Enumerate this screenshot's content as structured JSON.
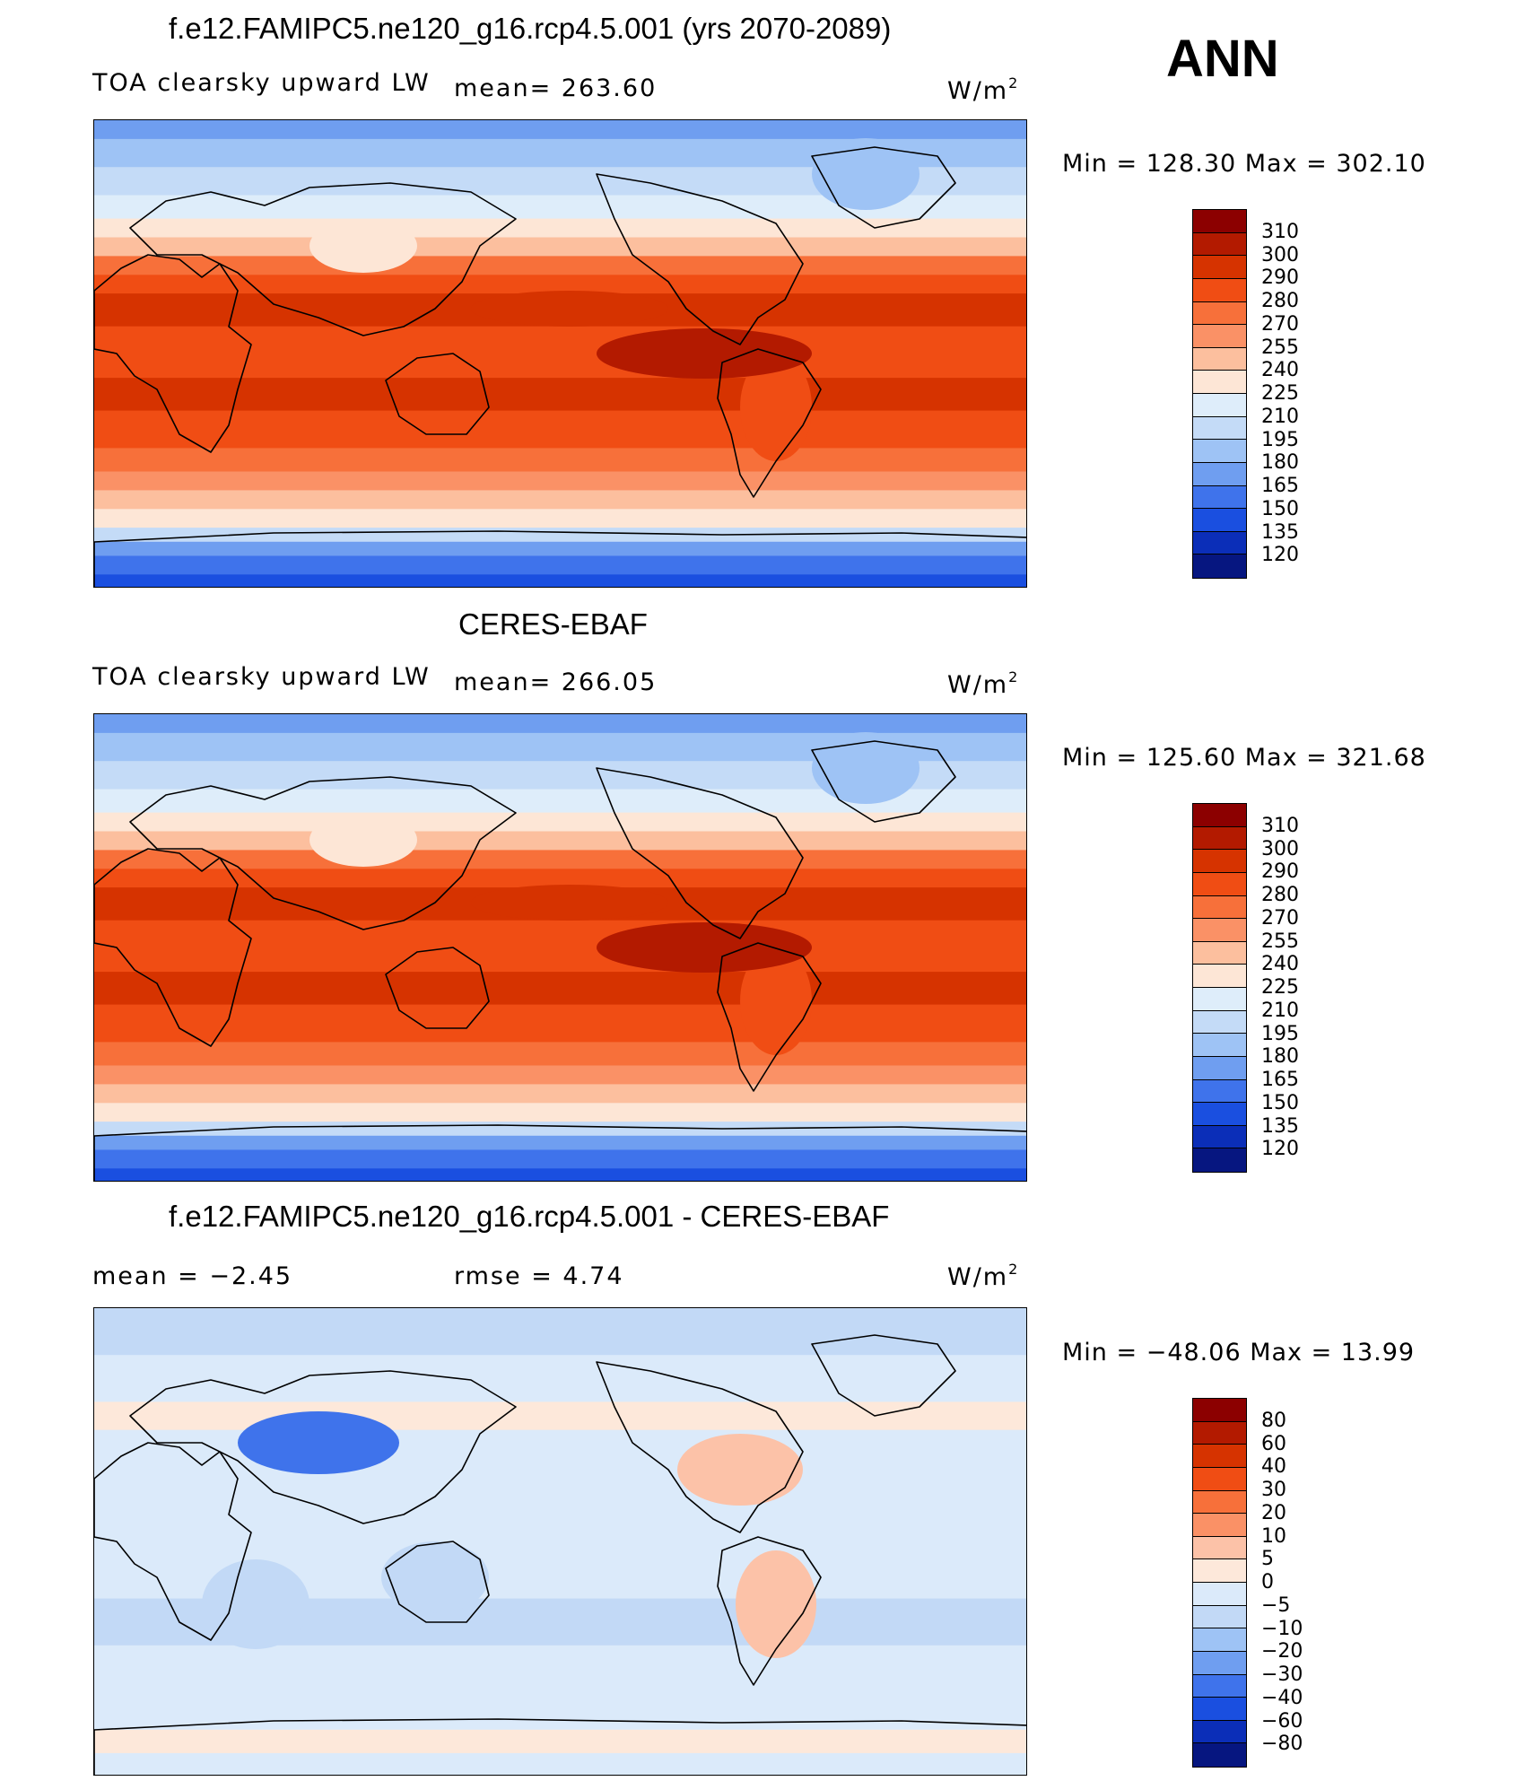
{
  "ann_label": "ANN",
  "panels": [
    {
      "id": "model",
      "title": "f.e12.FAMIPC5.ne120_g16.rcp4.5.001 (yrs 2070-2089)",
      "variable": "TOA clearsky upward LW",
      "stat1": "mean=  263.60",
      "stat2": "",
      "units": "W/m",
      "units_sup": "2",
      "minmax": "Min  =  128.30  Max  =  302.10",
      "scale": "abs"
    },
    {
      "id": "obs",
      "title": "CERES-EBAF",
      "variable": "TOA clearsky upward LW",
      "stat1": "mean=  266.05",
      "stat2": "",
      "units": "W/m",
      "units_sup": "2",
      "minmax": "Min  =  125.60  Max  =  321.68",
      "scale": "abs"
    },
    {
      "id": "diff",
      "title": "f.e12.FAMIPC5.ne120_g16.rcp4.5.001 - CERES-EBAF",
      "variable": "mean  =    −2.45",
      "stat1": "rmse  =     4.74",
      "stat2": "",
      "units": "W/m",
      "units_sup": "2",
      "minmax": "Min  =  −48.06  Max  =    13.99",
      "scale": "diff"
    }
  ],
  "colorbars": {
    "abs": {
      "labels": [
        "310",
        "300",
        "290",
        "280",
        "270",
        "255",
        "240",
        "225",
        "210",
        "195",
        "180",
        "165",
        "150",
        "135",
        "120"
      ],
      "colors": [
        "#8c0000",
        "#b31a00",
        "#d63300",
        "#f04d14",
        "#f7703a",
        "#fa9166",
        "#fcbf9e",
        "#fde6d6",
        "#deedfa",
        "#c4dbf7",
        "#9ec3f5",
        "#6f9ef0",
        "#3f73eb",
        "#1a4fe0",
        "#0b2eb8",
        "#061680"
      ]
    },
    "diff": {
      "labels": [
        "80",
        "60",
        "40",
        "30",
        "20",
        "10",
        "5",
        "0",
        "−5",
        "−10",
        "−20",
        "−30",
        "−40",
        "−60",
        "−80"
      ],
      "colors": [
        "#8c0000",
        "#b31a00",
        "#d63300",
        "#f04d14",
        "#f7703a",
        "#fa9166",
        "#fcc2a8",
        "#fde8da",
        "#dbeafa",
        "#c2d9f6",
        "#9ec3f5",
        "#6f9ef0",
        "#3f73eb",
        "#1a4fe0",
        "#0b2eb8",
        "#061680"
      ]
    }
  }
}
